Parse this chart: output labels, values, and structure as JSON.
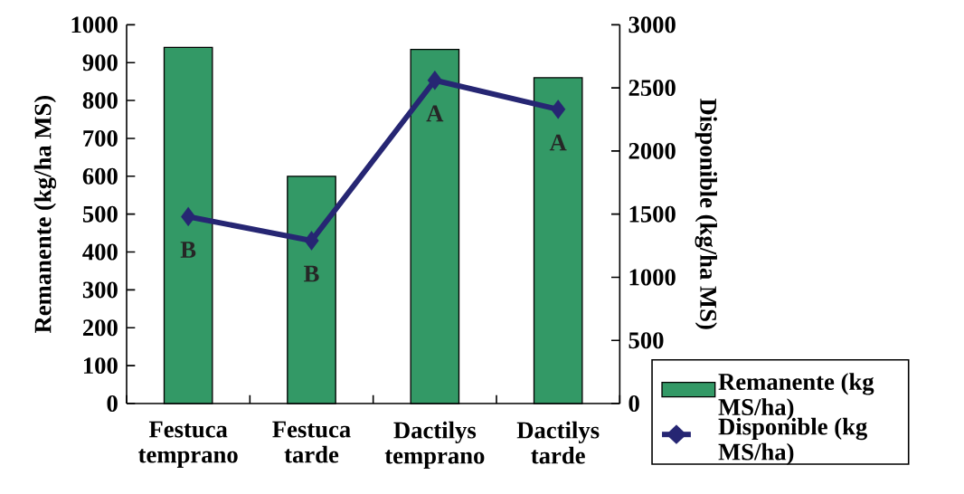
{
  "chart_data": {
    "type": "bar",
    "categories": [
      "Festuca temprano",
      "Festuca tarde",
      "Dactilys temprano",
      "Dactilys tarde"
    ],
    "series": [
      {
        "name": "Remanente (kg MS/ha)",
        "color": "#339966",
        "values": [
          940,
          600,
          935,
          860
        ]
      },
      {
        "name": "Disponible (kg MS/ha)",
        "type": "line",
        "axis": "y2",
        "color": "#262673",
        "values": [
          1480,
          1290,
          2560,
          2330
        ]
      }
    ],
    "ylabel": "Remanente (kg/ha MS)",
    "y2label": "Disponible (kg/ha MS)",
    "ylim": [
      0,
      1000
    ],
    "yticks": [
      0,
      100,
      200,
      300,
      400,
      500,
      600,
      700,
      800,
      900,
      1000
    ],
    "y2lim": [
      0,
      3000
    ],
    "y2ticks": [
      0,
      500,
      1000,
      1500,
      2000,
      2500,
      3000
    ],
    "marker": "diamond",
    "line_style": "solid",
    "grid": false,
    "legend": "bottom right",
    "annotations": [
      "B",
      "B",
      "A",
      "A"
    ]
  }
}
